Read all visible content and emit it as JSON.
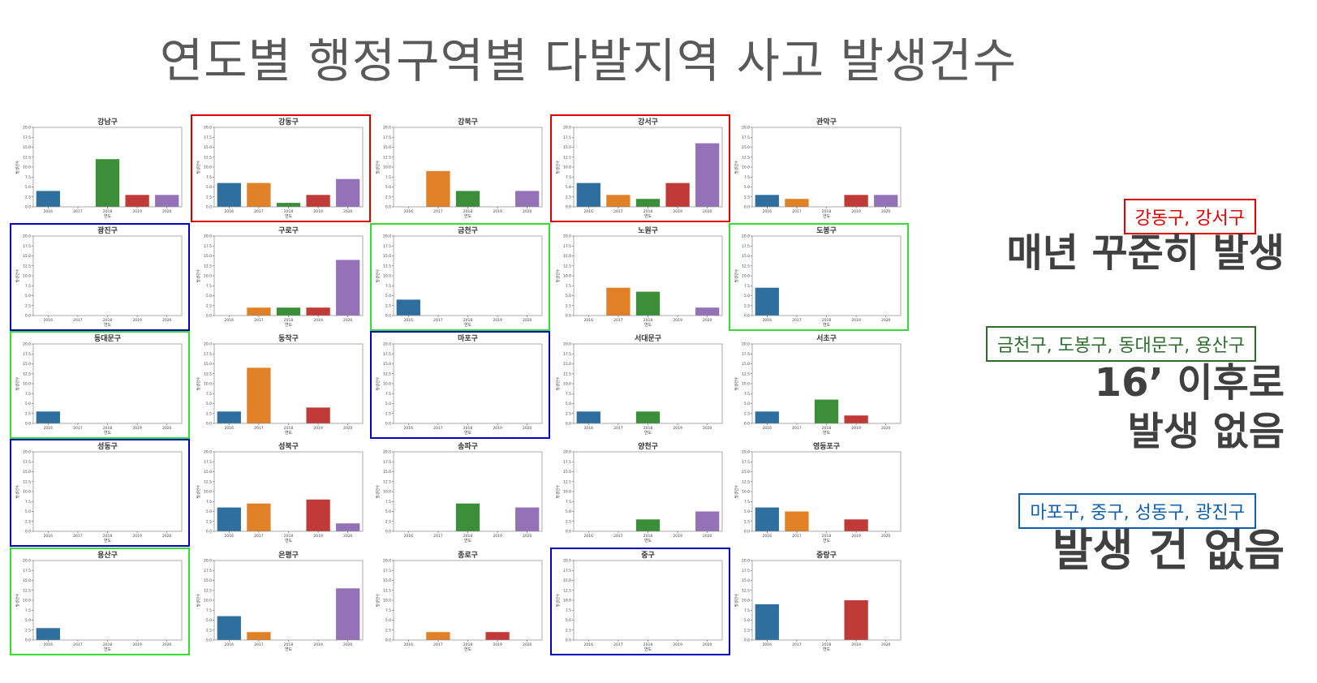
{
  "title": "연도별 행정구역별 다발지역 사고 발생건수",
  "colors": {
    "years": [
      "#2f6f9f",
      "#e08128",
      "#3a8f38",
      "#c03a37",
      "#9572b8"
    ],
    "red_box": "#e00000",
    "green_box": "#33dd33",
    "blue_box": "#0000c0",
    "legend_red": "#e00000",
    "legend_green": "#2e6b2e",
    "legend_blue": "#1060b0"
  },
  "chart_data": {
    "type": "bar",
    "categories": [
      "2016",
      "2017",
      "2018",
      "2019",
      "2020"
    ],
    "xlabel": "연도",
    "ylabel": "발생건수",
    "ylim": [
      0,
      20
    ],
    "yticks": [
      "0.0",
      "2.5",
      "5.0",
      "7.5",
      "10.0",
      "12.5",
      "15.0",
      "17.5",
      "20.0"
    ],
    "panels": [
      {
        "name": "강남구",
        "values": [
          4,
          0,
          12,
          3,
          3
        ],
        "highlight": "none"
      },
      {
        "name": "강동구",
        "values": [
          6,
          6,
          1,
          3,
          7
        ],
        "highlight": "red"
      },
      {
        "name": "강북구",
        "values": [
          0,
          9,
          4,
          0,
          4
        ],
        "highlight": "none"
      },
      {
        "name": "강서구",
        "values": [
          6,
          3,
          2,
          6,
          16
        ],
        "highlight": "red"
      },
      {
        "name": "관악구",
        "values": [
          3,
          2,
          0,
          3,
          3
        ],
        "highlight": "none"
      },
      {
        "name": "광진구",
        "values": [
          0,
          0,
          0,
          0,
          0
        ],
        "highlight": "blue"
      },
      {
        "name": "구로구",
        "values": [
          0,
          2,
          2,
          2,
          14
        ],
        "highlight": "none"
      },
      {
        "name": "금천구",
        "values": [
          4,
          0,
          0,
          0,
          0
        ],
        "highlight": "green"
      },
      {
        "name": "노원구",
        "values": [
          0,
          7,
          6,
          0,
          2
        ],
        "highlight": "none"
      },
      {
        "name": "도봉구",
        "values": [
          7,
          0,
          0,
          0,
          0
        ],
        "highlight": "green"
      },
      {
        "name": "동대문구",
        "values": [
          3,
          0,
          0,
          0,
          0
        ],
        "highlight": "green"
      },
      {
        "name": "동작구",
        "values": [
          3,
          14,
          0,
          4,
          0
        ],
        "highlight": "none"
      },
      {
        "name": "마포구",
        "values": [
          0,
          0,
          0,
          0,
          0
        ],
        "highlight": "blue"
      },
      {
        "name": "서대문구",
        "values": [
          3,
          0,
          3,
          0,
          0
        ],
        "highlight": "none"
      },
      {
        "name": "서초구",
        "values": [
          3,
          0,
          6,
          2,
          0
        ],
        "highlight": "none"
      },
      {
        "name": "성동구",
        "values": [
          0,
          0,
          0,
          0,
          0
        ],
        "highlight": "blue"
      },
      {
        "name": "성북구",
        "values": [
          6,
          7,
          0,
          8,
          2
        ],
        "highlight": "none"
      },
      {
        "name": "송파구",
        "values": [
          0,
          0,
          7,
          0,
          6
        ],
        "highlight": "none"
      },
      {
        "name": "양천구",
        "values": [
          0,
          0,
          3,
          0,
          5
        ],
        "highlight": "none"
      },
      {
        "name": "영등포구",
        "values": [
          6,
          5,
          0,
          3,
          0
        ],
        "highlight": "none"
      },
      {
        "name": "용산구",
        "values": [
          3,
          0,
          0,
          0,
          0
        ],
        "highlight": "green"
      },
      {
        "name": "은평구",
        "values": [
          6,
          2,
          0,
          0,
          13
        ],
        "highlight": "none"
      },
      {
        "name": "종로구",
        "values": [
          0,
          2,
          0,
          2,
          0
        ],
        "highlight": "none"
      },
      {
        "name": "중구",
        "values": [
          0,
          0,
          0,
          0,
          0
        ],
        "highlight": "blue"
      },
      {
        "name": "중랑구",
        "values": [
          9,
          0,
          0,
          10,
          0
        ],
        "highlight": "none"
      }
    ]
  },
  "legend": {
    "red": {
      "tag": "강동구, 강서구",
      "lines": [
        "매년 꾸준히 발생"
      ]
    },
    "green": {
      "tag": "금천구, 도봉구, 동대문구, 용산구",
      "lines": [
        "16’ 이후로",
        "발생 없음"
      ]
    },
    "blue": {
      "tag": "마포구, 중구, 성동구, 광진구",
      "lines": [
        "발생 건 없음"
      ]
    }
  }
}
